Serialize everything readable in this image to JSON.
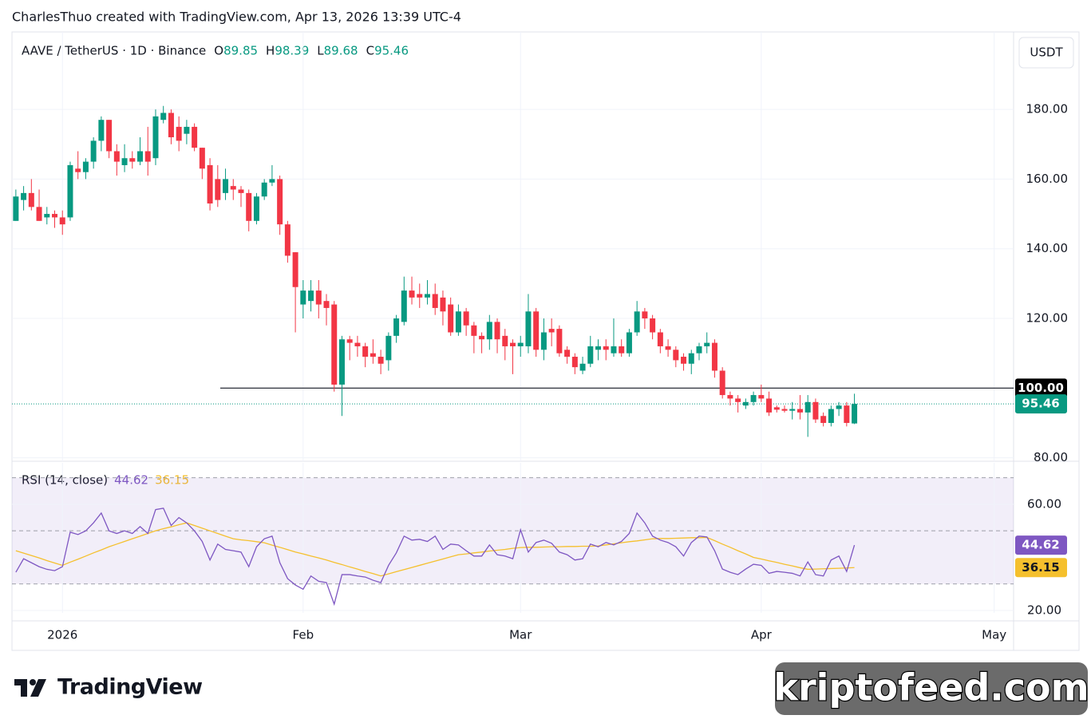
{
  "header": "CharlesThuo created with TradingView.com, Apr 13, 2026 13:39 UTC-4",
  "footer": {
    "logo": "TradingView",
    "watermark": "kriptofeed.com"
  },
  "chart_data": {
    "type": "candlestick",
    "title": "AAVE / TetherUS · 1D · Binance",
    "ohlc_letters": [
      "O",
      "H",
      "L",
      "C"
    ],
    "currency": "USDT",
    "up_color": "#089981",
    "down_color": "#f23645",
    "xlim": [
      -0.5,
      128.5
    ],
    "xticks": [
      {
        "value": 6,
        "label": "2026"
      },
      {
        "value": 37,
        "label": "Feb"
      },
      {
        "value": 65,
        "label": "Mar"
      },
      {
        "value": 96,
        "label": "Apr"
      },
      {
        "value": 126,
        "label": "May"
      }
    ],
    "ylim": [
      79,
      201.1
    ],
    "yticks": [
      {
        "value": 80,
        "label": "80.00"
      },
      {
        "value": 120,
        "label": "120.00"
      },
      {
        "value": 140,
        "label": "140.00"
      },
      {
        "value": 160,
        "label": "160.00"
      },
      {
        "value": 180,
        "label": "180.00"
      }
    ],
    "grid": true,
    "hline": {
      "value": 100,
      "label": "100.00"
    },
    "open": [
      148,
      154,
      156,
      152,
      149,
      150,
      149,
      149,
      163,
      162,
      165,
      171,
      177,
      168,
      164,
      166,
      165,
      168,
      166,
      177,
      179,
      175,
      173,
      175,
      169,
      164,
      160,
      156,
      158,
      157,
      156,
      148,
      155,
      159,
      160,
      147,
      139,
      124,
      125,
      128,
      125,
      124,
      101,
      114,
      113,
      112,
      110,
      109,
      108,
      115,
      119,
      128,
      127,
      126,
      127,
      126,
      124,
      116,
      122,
      118,
      115,
      114,
      119,
      115,
      113,
      112,
      112,
      122,
      111,
      117,
      117,
      111,
      109,
      105,
      107,
      111,
      112,
      110,
      112,
      110,
      116,
      122,
      120,
      116,
      112,
      111,
      109,
      107,
      110,
      112,
      113,
      105,
      98,
      97,
      95,
      96,
      98,
      97,
      94.5,
      94,
      93.5,
      94,
      93,
      96,
      92,
      90,
      94,
      95,
      89.85
    ],
    "high": [
      157,
      158,
      160,
      157,
      152,
      151,
      151,
      165,
      168,
      166,
      172,
      178,
      177,
      170,
      170,
      168,
      172,
      175,
      180,
      181,
      180,
      178,
      177,
      176,
      169,
      166,
      164,
      163,
      160,
      158,
      157,
      156,
      160,
      164,
      161,
      148,
      139,
      131,
      131,
      131,
      127,
      125,
      115,
      115,
      115,
      113,
      114,
      111,
      116,
      121,
      132,
      132,
      130,
      131,
      130,
      128,
      126,
      124,
      123,
      119,
      116,
      121,
      120,
      117,
      114,
      115,
      127,
      123,
      120,
      120,
      118,
      112,
      110,
      109,
      115,
      114,
      114,
      120,
      114,
      117,
      125,
      123,
      121,
      117,
      114,
      112,
      110,
      111,
      113,
      116,
      114,
      106,
      99,
      98,
      97,
      99,
      101,
      99,
      95,
      95,
      96,
      98,
      98,
      97,
      93,
      95,
      96,
      96,
      98.39
    ],
    "low": [
      148,
      151,
      151,
      148,
      147,
      146,
      144,
      148,
      160,
      160,
      163,
      168,
      166,
      161,
      162,
      163,
      164,
      161,
      164,
      176,
      170,
      168,
      170,
      168,
      160,
      151,
      152,
      154,
      154,
      152,
      145,
      147,
      154,
      158,
      144,
      136,
      116,
      120,
      122,
      120,
      118,
      99,
      92,
      108,
      109,
      106,
      107,
      104,
      105,
      113,
      118,
      124,
      123,
      124,
      121,
      118,
      115,
      115,
      115,
      110,
      110,
      111,
      110,
      108,
      104,
      109,
      110,
      109,
      108,
      112,
      109,
      107,
      104,
      104,
      106,
      108,
      108,
      109,
      109,
      109,
      115,
      117,
      114,
      110,
      109,
      106,
      105,
      104,
      108,
      110,
      103,
      97,
      95,
      93,
      94,
      95,
      96,
      92,
      93,
      93,
      91,
      91,
      86,
      90,
      89,
      89,
      92,
      89,
      89.68
    ],
    "close": [
      155,
      156,
      152,
      148,
      150,
      149,
      147,
      164,
      162,
      165,
      171,
      177,
      168,
      165,
      166,
      165,
      168,
      165,
      178,
      179,
      172,
      171,
      175,
      169,
      163,
      153,
      154,
      160,
      157,
      156,
      148,
      155,
      159,
      160,
      147,
      138,
      129,
      128,
      128,
      124,
      123,
      101,
      114,
      113,
      112,
      109,
      109,
      107,
      115,
      120,
      128,
      126,
      126,
      127,
      123,
      122,
      116,
      122,
      118,
      115,
      114,
      119,
      114,
      112,
      112,
      113,
      122,
      111,
      116,
      116,
      110,
      109,
      106,
      107,
      112,
      112,
      111,
      112,
      110,
      116,
      122,
      120,
      116,
      112,
      111,
      108,
      107,
      110,
      112,
      113,
      105,
      98,
      97,
      96,
      96,
      98,
      97,
      93,
      93.8,
      93.5,
      94,
      93,
      96,
      91,
      90,
      94,
      95,
      90,
      95.46
    ],
    "rsi": {
      "title": "RSI (14, close)",
      "color": "#7e57c2",
      "ma_color": "#f5c02d",
      "ylim": [
        19.1,
        75.6
      ],
      "yticks": [
        {
          "value": 20,
          "label": "20.00"
        },
        {
          "value": 60,
          "label": "60.00"
        }
      ],
      "bands": [
        30,
        50,
        70
      ],
      "values": [
        34.4,
        39.5,
        38,
        36.5,
        35.5,
        35,
        36.5,
        49.5,
        48.6,
        50,
        53,
        56.7,
        50,
        49,
        50,
        49,
        51.6,
        49,
        58,
        58.5,
        52,
        55,
        53,
        50,
        46,
        39,
        45,
        43,
        42.5,
        42,
        36.5,
        44,
        47,
        48,
        38,
        32,
        29.6,
        28,
        33,
        31,
        30.5,
        22.4,
        33.5,
        33.5,
        33,
        32.6,
        31.4,
        30.5,
        37,
        41.7,
        48,
        46.5,
        46.8,
        46,
        48,
        43,
        45,
        44.7,
        42.5,
        40.5,
        40.5,
        44.7,
        41,
        40.5,
        39.5,
        50.4,
        42,
        45.6,
        46.5,
        45.3,
        42,
        41,
        39,
        39.5,
        45,
        44,
        45.6,
        44.7,
        46,
        49,
        56.7,
        53,
        48,
        46.5,
        45.6,
        44,
        40.5,
        45.6,
        48,
        47.7,
        42.5,
        35.6,
        34.4,
        33.5,
        35.6,
        37.4,
        37,
        34,
        34.7,
        34.4,
        34,
        33,
        38.3,
        33.5,
        33,
        39,
        40.5,
        34.7,
        44.62
      ],
      "ma": [
        42.5,
        41.6,
        40.7,
        39.8,
        38.8,
        37.9,
        37,
        38.2,
        39.3,
        40.5,
        41.7,
        42.8,
        44,
        45,
        46,
        47,
        48,
        49,
        50,
        50.8,
        51.5,
        52.3,
        53,
        52,
        51,
        50,
        49,
        48,
        47,
        46.6,
        46.3,
        45.9,
        45.5,
        44.6,
        43.8,
        42.9,
        42,
        41.3,
        40.5,
        39.8,
        39,
        38.1,
        37.3,
        36.4,
        35.6,
        34.7,
        33.9,
        33,
        33.8,
        34.6,
        35.4,
        36.2,
        37,
        37.8,
        38.6,
        39.4,
        40.2,
        41,
        41.3,
        41.7,
        42,
        42.4,
        42.7,
        43,
        43.4,
        43.7,
        43.8,
        43.8,
        43.9,
        44,
        44,
        44.1,
        44.1,
        44.2,
        44.2,
        44.3,
        44.7,
        45.1,
        45.5,
        45.9,
        46.2,
        46.6,
        47,
        47.1,
        47.1,
        47.2,
        47.3,
        47.4,
        47.4,
        47.5,
        46.3,
        45,
        43.8,
        42.5,
        41.3,
        40,
        39.4,
        38.7,
        38.1,
        37.4,
        36.8,
        36.1,
        35.5,
        35.6,
        35.7,
        35.8,
        35.9,
        36,
        36.15
      ]
    }
  }
}
